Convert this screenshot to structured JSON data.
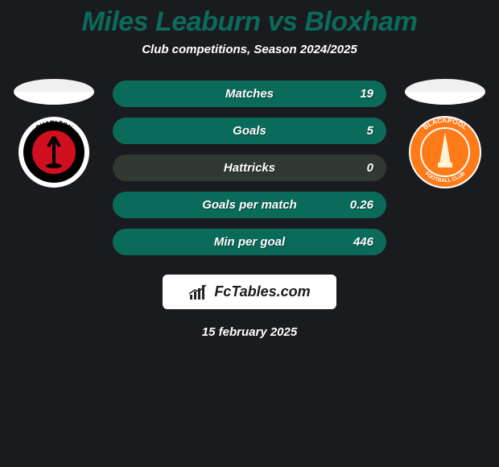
{
  "title": {
    "text": "Miles Leaburn vs Bloxham",
    "color": "#0a6b5a",
    "fontsize": 34
  },
  "subtitle": {
    "text": "Club competitions, Season 2024/2025",
    "color": "#ffffff",
    "fontsize": 15
  },
  "background_color": "#1a1b1e",
  "left_side": {
    "flag_top_color": "#f0f0f0",
    "flag_bottom_color": "#ffffff",
    "crest": {
      "bg": "#ffffff",
      "inner_bg": "#000000",
      "accent": "#d01020",
      "text_top": "CHARLTON",
      "text_bottom": "ATHLETIC"
    }
  },
  "right_side": {
    "flag_top_color": "#f0f0f0",
    "flag_bottom_color": "#ffffff",
    "crest": {
      "bg": "#ff7a18",
      "border": "#ffffff",
      "inner": "#fff3d6",
      "text_top": "BLACKPOOL",
      "text_bottom": "FOOTBALL CLUB"
    }
  },
  "stats": {
    "row_bg": "#303a33",
    "bar_color": "#0a6b5a",
    "label_color": "#ffffff",
    "value_color": "#ffffff",
    "label_fontsize": 15,
    "value_fontsize": 15,
    "rows": [
      {
        "label": "Matches",
        "value": "19",
        "bar_pct": 100
      },
      {
        "label": "Goals",
        "value": "5",
        "bar_pct": 100
      },
      {
        "label": "Hattricks",
        "value": "0",
        "bar_pct": 0
      },
      {
        "label": "Goals per match",
        "value": "0.26",
        "bar_pct": 100
      },
      {
        "label": "Min per goal",
        "value": "446",
        "bar_pct": 100
      }
    ]
  },
  "branding": {
    "text": "FcTables.com",
    "text_color": "#1a1b1e",
    "fontsize": 18,
    "bg": "#ffffff",
    "icon_color": "#222222"
  },
  "date": {
    "text": "15 february 2025",
    "color": "#ffffff",
    "fontsize": 15
  }
}
